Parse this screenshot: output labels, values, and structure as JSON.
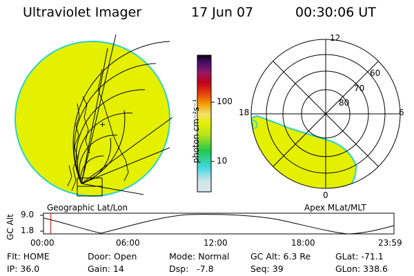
{
  "header": {
    "instrument": "Ultraviolet Imager",
    "date": "17 Jun 07",
    "time": "00:30:06 UT"
  },
  "colors": {
    "aurora_fill": "#e4f000",
    "aurora_edge": "#28d2cc",
    "grid_line": "#000000",
    "marker": "#cc0000"
  },
  "colorbar": {
    "ticks": [
      "100",
      "10"
    ],
    "unit_label": "photon cm⁻²s⁻¹",
    "stops": [
      "#dce8ec",
      "#3fd8e0",
      "#22c84a",
      "#b8e41c",
      "#e4f000",
      "#f4e070",
      "#f4a000",
      "#e44010",
      "#c00018",
      "#981860",
      "#4c1070",
      "#100018"
    ]
  },
  "left_map": {
    "label": "Geographic Lat/Lon",
    "coast_labels": [
      "+"
    ]
  },
  "right_map": {
    "label": "Apex MLat/MLT",
    "mlt_labels": [
      "12",
      "18",
      "6",
      "0"
    ],
    "mlat_labels": [
      "60",
      "70",
      "80"
    ]
  },
  "altitude_strip": {
    "ylabel": "GC Alt",
    "y_ticks": [
      "9.0",
      "1.8"
    ],
    "x_ticks": [
      "00:00",
      "06:00",
      "12:00",
      "18:00",
      "23:59"
    ],
    "marker_fraction": 0.021
  },
  "status": {
    "filter": "Flt: HOME",
    "door": "Door: Open",
    "mode": "Mode: Normal",
    "gc_alt": "GC Alt: 6.3 Re",
    "glat": "GLat: -71.1",
    "ip": "IP: 36.0",
    "gain": "Gain: 14",
    "dsp": "Dsp:   -7.8",
    "seq": "Seq: 39",
    "glon": "GLon: 338.6"
  }
}
